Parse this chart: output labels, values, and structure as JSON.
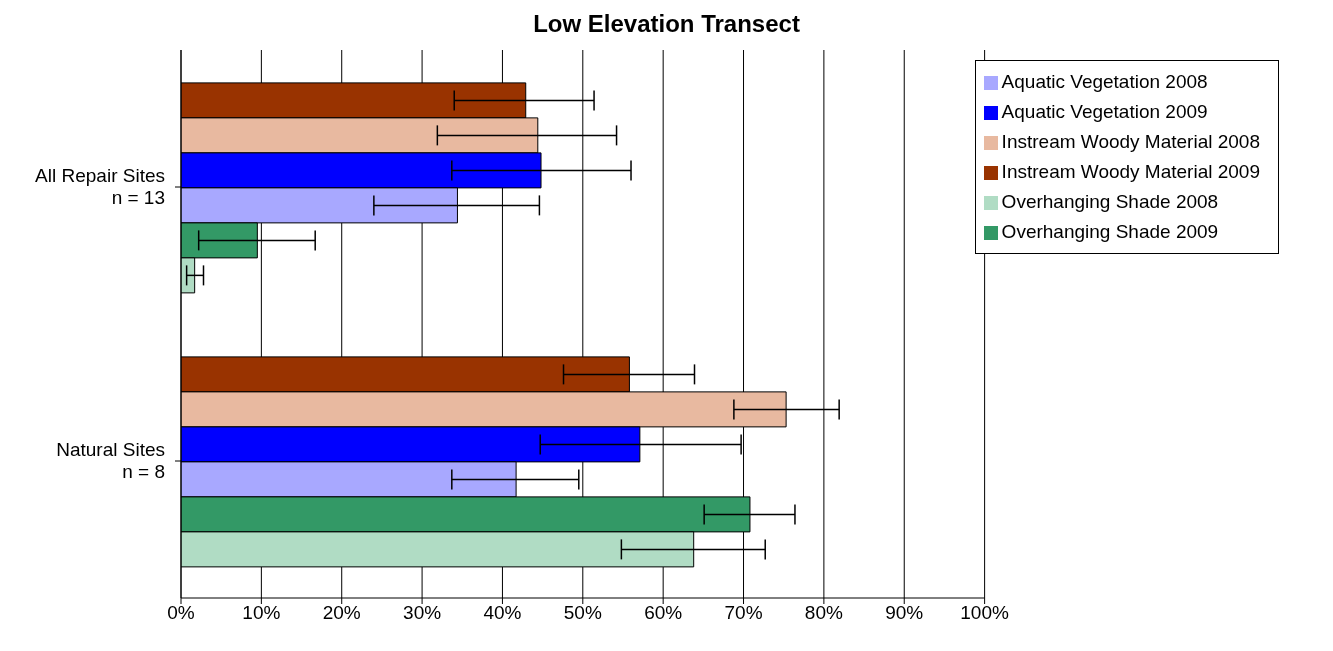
{
  "chart_data": {
    "type": "bar",
    "orientation": "horizontal",
    "title": "Low Elevation Transect",
    "categories": [
      "All Repair Sites\nn = 13",
      "Natural Sites\nn = 8"
    ],
    "series": [
      {
        "name": "Instream Woody Material 2009",
        "color": "#993300",
        "values": [
          42.9,
          55.8
        ],
        "errors": [
          [
            34.0,
            51.4
          ],
          [
            47.6,
            63.9
          ]
        ]
      },
      {
        "name": "Instream Woody Material 2008",
        "color": "#e8b9a0",
        "values": [
          44.4,
          75.3
        ],
        "errors": [
          [
            31.9,
            54.2
          ],
          [
            68.8,
            81.9
          ]
        ]
      },
      {
        "name": "Aquatic Vegetation 2009",
        "color": "#0000ff",
        "values": [
          44.8,
          57.1
        ],
        "errors": [
          [
            33.7,
            56.0
          ],
          [
            44.7,
            69.7
          ]
        ]
      },
      {
        "name": "Aquatic Vegetation 2008",
        "color": "#a8a8ff",
        "values": [
          34.4,
          41.7
        ],
        "errors": [
          [
            24.0,
            44.6
          ],
          [
            33.7,
            49.5
          ]
        ]
      },
      {
        "name": "Overhanging Shade 2009",
        "color": "#339966",
        "values": [
          9.5,
          70.8
        ],
        "errors": [
          [
            2.2,
            16.7
          ],
          [
            65.1,
            76.4
          ]
        ]
      },
      {
        "name": "Overhanging Shade 2008",
        "color": "#b0dcc4",
        "values": [
          1.7,
          63.8
        ],
        "errors": [
          [
            0.7,
            2.8
          ],
          [
            54.8,
            72.7
          ]
        ]
      }
    ],
    "xlim": [
      0,
      100
    ],
    "xticks": [
      {
        "value": 0,
        "label": "0%"
      },
      {
        "value": 10,
        "label": "10%"
      },
      {
        "value": 20,
        "label": "20%"
      },
      {
        "value": 30,
        "label": "30%"
      },
      {
        "value": 40,
        "label": "40%"
      },
      {
        "value": 50,
        "label": "50%"
      },
      {
        "value": 60,
        "label": "60%"
      },
      {
        "value": 70,
        "label": "70%"
      },
      {
        "value": 80,
        "label": "80%"
      },
      {
        "value": 90,
        "label": "90%"
      },
      {
        "value": 100,
        "label": "100%"
      }
    ],
    "grid": "x",
    "legend": "top right"
  }
}
